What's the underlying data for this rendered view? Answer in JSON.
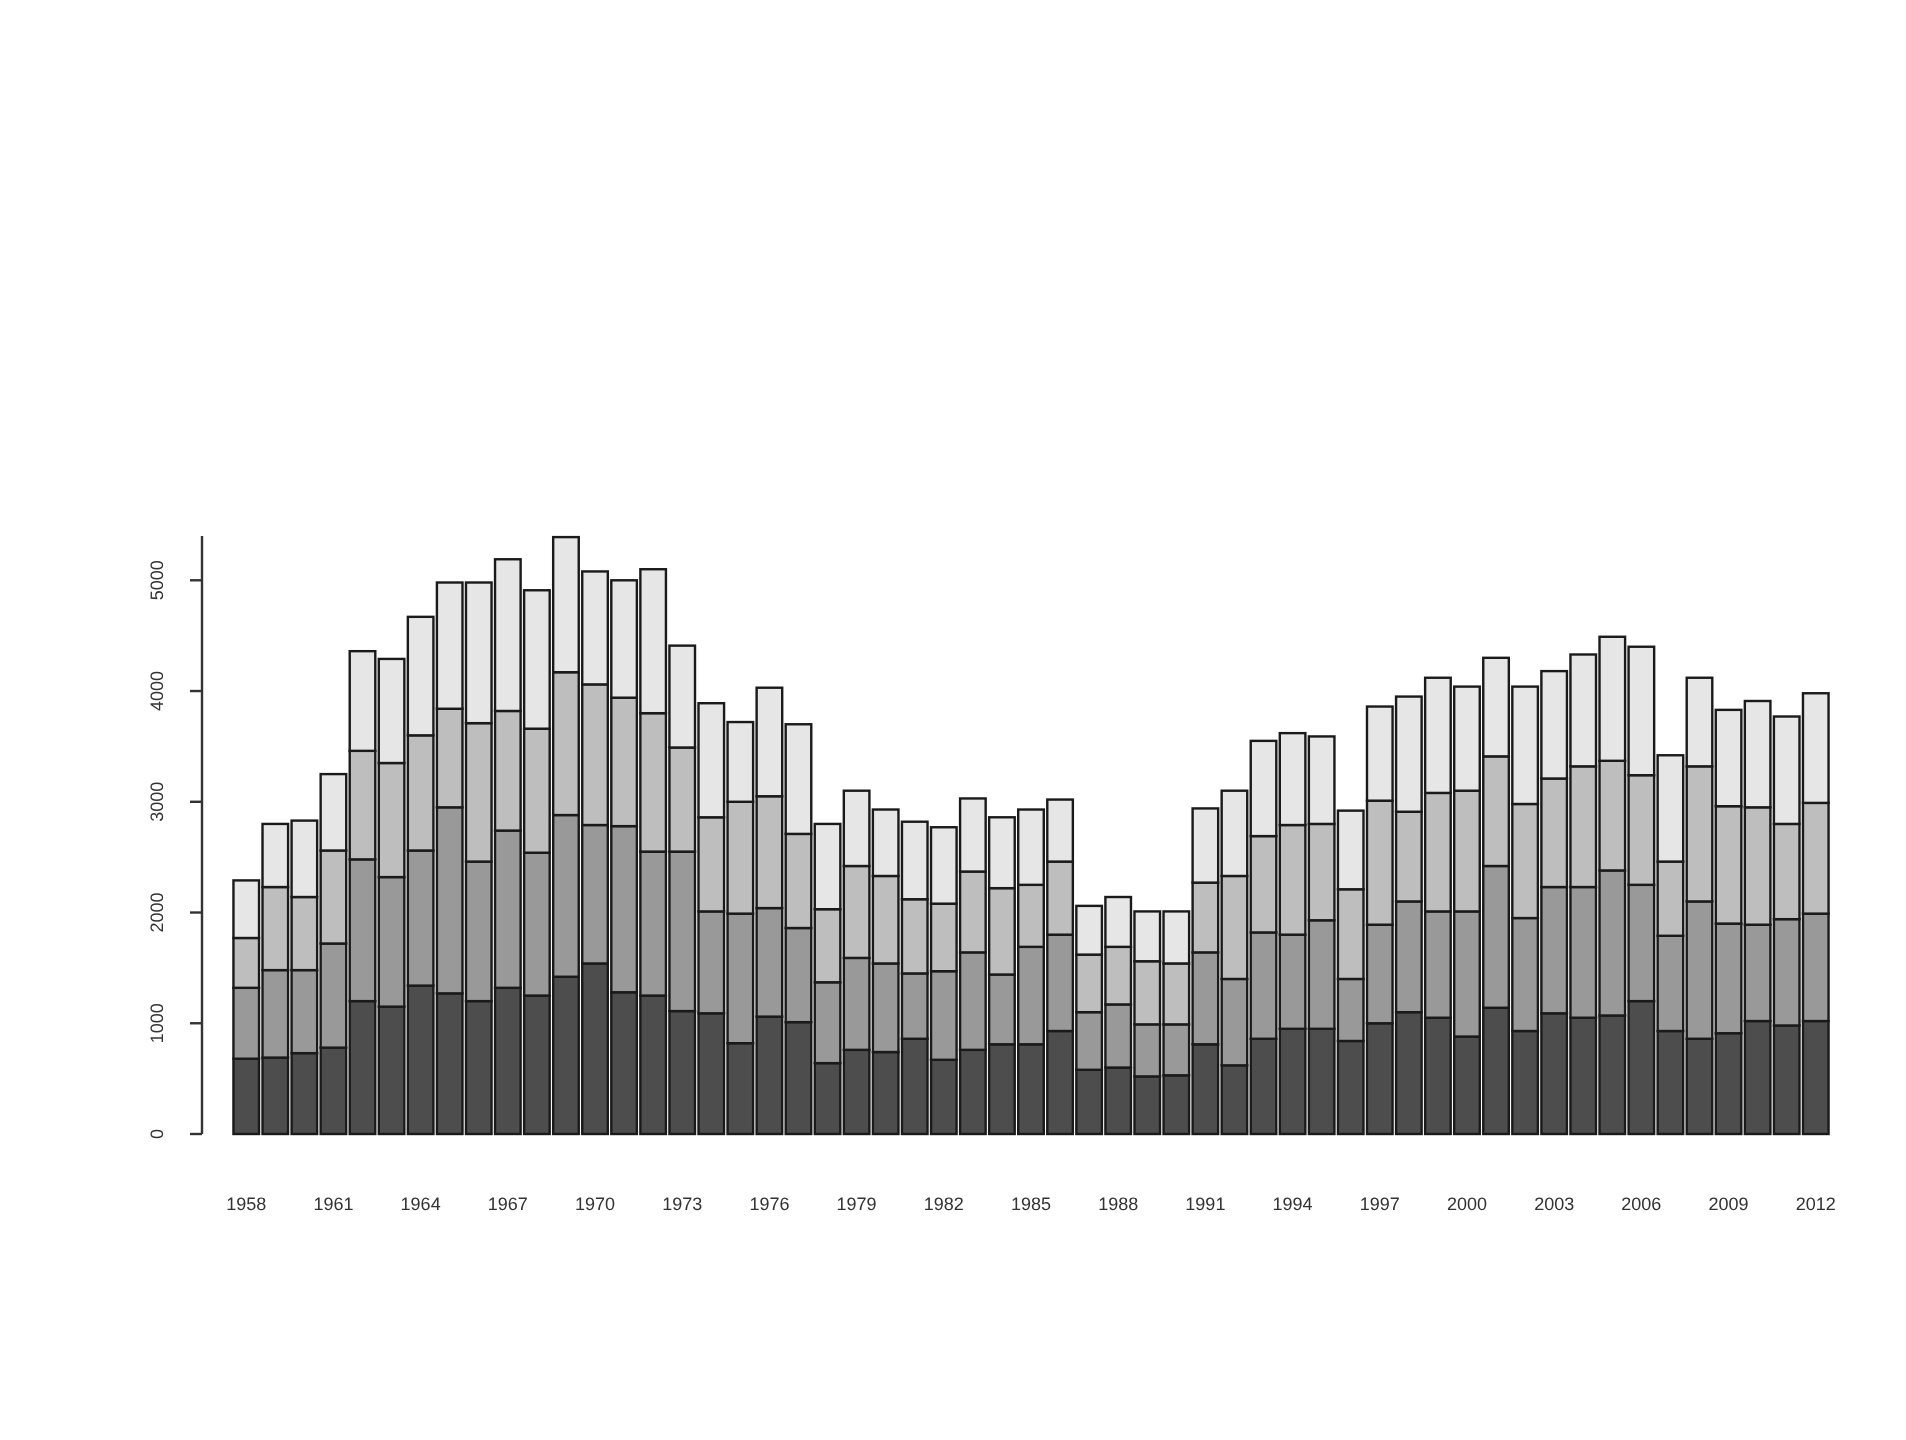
{
  "chart_data": {
    "type": "bar",
    "stacked": true,
    "categories": [
      "1958",
      null,
      null,
      "1961",
      null,
      null,
      "1964",
      null,
      null,
      "1967",
      null,
      null,
      "1970",
      null,
      null,
      "1973",
      null,
      null,
      "1976",
      null,
      null,
      "1979",
      null,
      null,
      "1982",
      null,
      null,
      "1985",
      null,
      null,
      "1988",
      null,
      null,
      "1991",
      null,
      null,
      "1994",
      null,
      null,
      "1997",
      null,
      null,
      "2000",
      null,
      null,
      "2003",
      null,
      null,
      "2006",
      null,
      null,
      "2009",
      null,
      null,
      "2012"
    ],
    "series": [
      {
        "color": "#4d4d4d",
        "values": [
          680,
          690,
          730,
          780,
          1200,
          1150,
          1340,
          1270,
          1200,
          1320,
          1250,
          1420,
          1540,
          1280,
          1250,
          1110,
          1090,
          820,
          1060,
          1010,
          640,
          760,
          740,
          860,
          670,
          760,
          810,
          810,
          930,
          580,
          600,
          520,
          530,
          810,
          620,
          860,
          950,
          950,
          840,
          1000,
          1100,
          1050,
          880,
          1140,
          930,
          1090,
          1050,
          1070,
          1200,
          930,
          860,
          910,
          1020,
          980,
          1020
        ]
      },
      {
        "color": "#999999",
        "values": [
          640,
          790,
          750,
          940,
          1280,
          1170,
          1220,
          1680,
          1260,
          1420,
          1290,
          1460,
          1250,
          1500,
          1300,
          1440,
          920,
          1170,
          980,
          850,
          730,
          830,
          800,
          590,
          800,
          880,
          630,
          880,
          870,
          520,
          570,
          470,
          460,
          830,
          780,
          960,
          850,
          980,
          560,
          890,
          1000,
          960,
          1130,
          1280,
          1020,
          1140,
          1180,
          1310,
          1050,
          860,
          1240,
          990,
          870,
          960,
          970
        ]
      },
      {
        "color": "#bebebe",
        "values": [
          450,
          750,
          660,
          840,
          980,
          1030,
          1040,
          890,
          1250,
          1080,
          1120,
          1290,
          1270,
          1160,
          1250,
          940,
          850,
          1010,
          1010,
          850,
          660,
          830,
          790,
          670,
          610,
          730,
          780,
          560,
          660,
          520,
          520,
          570,
          550,
          630,
          930,
          870,
          990,
          870,
          810,
          1120,
          810,
          1070,
          1090,
          990,
          1030,
          980,
          1090,
          990,
          990,
          670,
          1220,
          1060,
          1060,
          860,
          1000
        ]
      },
      {
        "color": "#e6e6e6",
        "values": [
          520,
          570,
          690,
          690,
          900,
          940,
          1070,
          1140,
          1270,
          1370,
          1250,
          1220,
          1020,
          1060,
          1300,
          920,
          1030,
          720,
          980,
          990,
          770,
          680,
          600,
          700,
          690,
          660,
          640,
          680,
          560,
          440,
          450,
          450,
          470,
          670,
          770,
          860,
          830,
          790,
          710,
          850,
          1040,
          1040,
          940,
          890,
          1060,
          970,
          1010,
          1120,
          1160,
          960,
          800,
          870,
          960,
          970,
          990
        ]
      }
    ],
    "ylim": [
      0,
      5400
    ],
    "yticks": [
      0,
      1000,
      2000,
      3000,
      4000,
      5000
    ]
  }
}
